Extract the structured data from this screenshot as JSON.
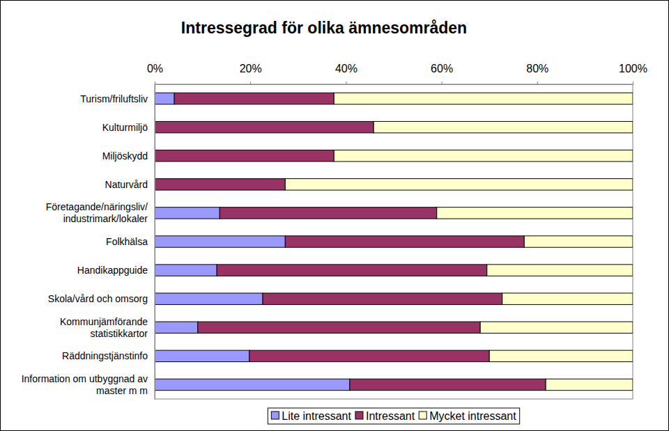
{
  "chart_data": {
    "type": "bar",
    "title": "Intressegrad för olika ämnesområden",
    "orientation": "horizontal",
    "stacked": true,
    "grid": false,
    "legend": "bottom",
    "categories": [
      "Turism/friluftsliv",
      "Kulturmiljö",
      "Miljöskydd",
      "Naturvård",
      "Företagande/näringsliv/\nindustrimark/lokaler",
      "Folkhälsa",
      "Handikappguide",
      "Skola/vård och omsorg",
      "Kommunjämförande\nstatistikkartor",
      "Räddningstjänstinfo",
      "Information om utbyggnad av\nmaster m m"
    ],
    "series": [
      {
        "name": "Lite intressant",
        "color": "#9999ff",
        "values": [
          4.1,
          0,
          0,
          0,
          13.6,
          27.3,
          13.0,
          22.6,
          9.0,
          19.8,
          40.8
        ]
      },
      {
        "name": "Intressant",
        "color": "#993366",
        "values": [
          33.4,
          45.8,
          37.5,
          27.3,
          45.4,
          50.0,
          56.5,
          50.1,
          59.1,
          50.2,
          41.0
        ]
      },
      {
        "name": "Mycket intressant",
        "color": "#ffffcc",
        "values": [
          62.5,
          54.2,
          62.5,
          72.7,
          41.0,
          22.7,
          30.5,
          27.3,
          31.9,
          30.0,
          18.2
        ]
      }
    ],
    "xlim": [
      0,
      100
    ],
    "xticks": [
      {
        "value": 0,
        "label": "0%"
      },
      {
        "value": 20,
        "label": "20%"
      },
      {
        "value": 40,
        "label": "40%"
      },
      {
        "value": 60,
        "label": "60%"
      },
      {
        "value": 80,
        "label": "80%"
      },
      {
        "value": 100,
        "label": "100%"
      }
    ]
  }
}
